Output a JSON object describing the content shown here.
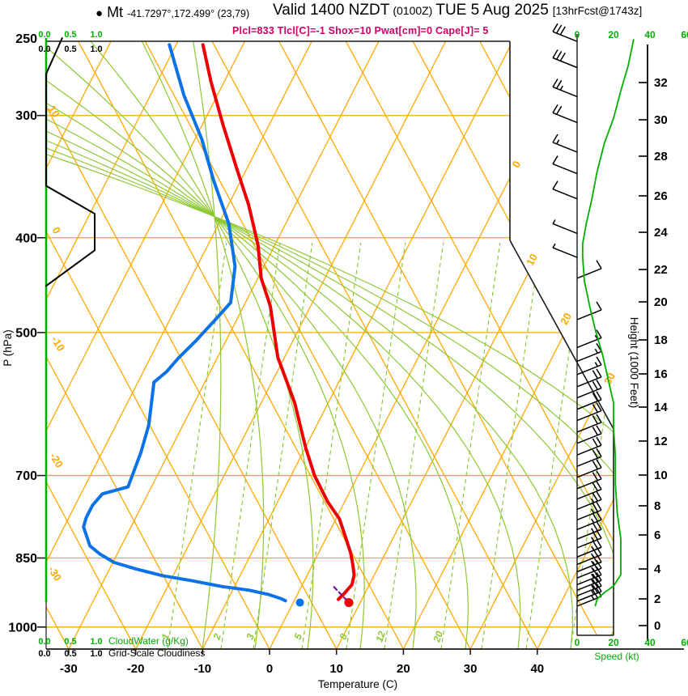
{
  "header": {
    "station_bullet": "●",
    "station_name": "Mt",
    "station_coords": "-41.7297°,172.499° (23,79)",
    "title_valid": "Valid 1400 NZDT",
    "title_utc": "(0100Z)",
    "title_date": "TUE 5 Aug 2025",
    "title_fcst": "[13hrFcst@1743z]",
    "params_line": "Plcl=833 Tlcl[C]=-1 Shox=10 Pwat[cm]=0 Cape[J]= 5"
  },
  "axes": {
    "pressure_title": "P (hPa)",
    "pressure_ticks": [
      250,
      300,
      400,
      500,
      700,
      850,
      1000
    ],
    "temperature_title": "Temperature (C)",
    "temperature_ticks": [
      -30,
      -20,
      -10,
      0,
      10,
      20,
      30,
      40
    ],
    "height_title": "Height (1000 Feet)",
    "height_ticks": [
      0,
      2,
      4,
      6,
      8,
      10,
      12,
      14,
      16,
      18,
      20,
      22,
      24,
      26,
      28,
      30,
      32
    ],
    "speed_title": "Speed (kt)",
    "speed_ticks": [
      0,
      20,
      40,
      60
    ],
    "cloud_scale_ticks": [
      "0.0",
      "0.5",
      "1.0"
    ],
    "cloudwater_label": "CloudWater (g/Kg)",
    "cloudiness_label": "Grid-Scale Cloudiness"
  },
  "grid_labels": {
    "isotherms": [
      0,
      10,
      20,
      30
    ],
    "dry_adiabats": [
      10,
      0,
      -10,
      -20,
      -30
    ],
    "mixing_ratio": [
      1,
      2,
      3,
      5,
      8,
      12,
      20
    ]
  },
  "colors": {
    "grid_orange": "#FFA800",
    "moist_green": "#8CC832",
    "bright_green": "#00AF00",
    "temperature_red": "#EE0000",
    "dewpoint_blue": "#0C72E8",
    "params_magenta": "#CC0066",
    "parcel_purple": "#7A0D9E",
    "axis_black": "#1a1a1a"
  },
  "chart_data": {
    "type": "line",
    "diagram": "skew-T log-p atmospheric sounding",
    "title": "Valid 1400 NZDT (0100Z) TUE 5 Aug 2025 [13hrFcst@1743z]",
    "xlabel": "Temperature (C)",
    "ylabel": "P (hPa)",
    "x_range_C": [
      -35,
      45
    ],
    "pressure_range_hPa": [
      250,
      1000
    ],
    "height_axis_kft_range": [
      0,
      32
    ],
    "speed_axis_kt_range": [
      0,
      60
    ],
    "series": [
      {
        "name": "temperature_C_vs_hPa",
        "color": "#EE0000",
        "points": [
          [
            254,
            -56
          ],
          [
            277,
            -52
          ],
          [
            306,
            -47
          ],
          [
            340,
            -41.5
          ],
          [
            370,
            -37
          ],
          [
            407,
            -32.5
          ],
          [
            440,
            -29.5
          ],
          [
            470,
            -26
          ],
          [
            530,
            -21
          ],
          [
            590,
            -15
          ],
          [
            655,
            -10
          ],
          [
            700,
            -6.5
          ],
          [
            745,
            -2.5
          ],
          [
            775,
            0.5
          ],
          [
            815,
            3.2
          ],
          [
            840,
            4.8
          ],
          [
            865,
            6.1
          ],
          [
            885,
            7.0
          ],
          [
            905,
            7.4
          ],
          [
            925,
            6.9
          ],
          [
            937,
            6.5
          ]
        ]
      },
      {
        "name": "dewpoint_C_vs_hPa",
        "color": "#0C72E8",
        "points": [
          [
            254,
            -61
          ],
          [
            286,
            -55
          ],
          [
            317,
            -49
          ],
          [
            350,
            -44
          ],
          [
            387,
            -38.5
          ],
          [
            428,
            -34.3
          ],
          [
            466,
            -32.2
          ],
          [
            487,
            -33.3
          ],
          [
            510,
            -34.5
          ],
          [
            531,
            -35.8
          ],
          [
            548,
            -36.5
          ],
          [
            562,
            -37.6
          ],
          [
            597,
            -36.1
          ],
          [
            622,
            -35.1
          ],
          [
            663,
            -34.2
          ],
          [
            719,
            -33.5
          ],
          [
            731,
            -36.8
          ],
          [
            751,
            -37.4
          ],
          [
            773,
            -37.4
          ],
          [
            790,
            -37.1
          ],
          [
            826,
            -34.7
          ],
          [
            842,
            -32.6
          ],
          [
            859,
            -29.8
          ],
          [
            872,
            -26.1
          ],
          [
            886,
            -21.6
          ],
          [
            897,
            -16.7
          ],
          [
            909,
            -11.9
          ],
          [
            917,
            -7.5
          ],
          [
            926,
            -4.4
          ],
          [
            935,
            -2.2
          ],
          [
            940,
            -1.3
          ]
        ]
      },
      {
        "name": "parcel_path_C_vs_hPa",
        "color": "#7A0D9E",
        "style": "dashed",
        "points": [
          [
            910,
            4.9
          ],
          [
            942,
            8.1
          ]
        ]
      },
      {
        "name": "wind_speed_kt_vs_hPa",
        "color": "#00AF00",
        "points": [
          [
            251,
            31
          ],
          [
            267,
            28
          ],
          [
            283,
            24
          ],
          [
            302,
            20
          ],
          [
            320,
            15
          ],
          [
            342,
            11
          ],
          [
            366,
            8
          ],
          [
            387,
            5
          ],
          [
            406,
            3
          ],
          [
            418,
            3
          ],
          [
            443,
            4
          ],
          [
            471,
            7
          ],
          [
            497,
            10
          ],
          [
            527,
            14
          ],
          [
            558,
            17
          ],
          [
            590,
            20
          ],
          [
            625,
            20
          ],
          [
            669,
            21
          ],
          [
            714,
            21
          ],
          [
            763,
            22
          ],
          [
            813,
            24
          ],
          [
            856,
            24
          ],
          [
            884,
            24
          ],
          [
            908,
            20
          ],
          [
            922,
            15
          ],
          [
            936,
            11
          ],
          [
            951,
            10
          ]
        ]
      },
      {
        "name": "grid_scale_cloudiness_frac_vs_hPa",
        "color": "#000000",
        "points": [
          [
            250,
            0.33
          ],
          [
            272,
            0
          ],
          [
            354,
            0
          ],
          [
            378,
            1
          ],
          [
            412,
            1
          ],
          [
            448,
            0
          ]
        ]
      },
      {
        "name": "cloud_water_g_kg_vs_hPa",
        "color": "#00AF00",
        "points": [
          [
            250,
            0
          ],
          [
            944,
            0
          ]
        ]
      }
    ],
    "surface": {
      "pressure_hPa": 944,
      "temperature_dot_C": 8.3,
      "dewpoint_dot_C": 1.0
    },
    "wind_barbs": [
      {
        "p": 252,
        "kt": 30,
        "dir": "NW"
      },
      {
        "p": 268,
        "kt": 30,
        "dir": "NW"
      },
      {
        "p": 287,
        "kt": 25,
        "dir": "NW"
      },
      {
        "p": 305,
        "kt": 20,
        "dir": "NW"
      },
      {
        "p": 327,
        "kt": 15,
        "dir": "NW"
      },
      {
        "p": 344,
        "kt": 10,
        "dir": "NW"
      },
      {
        "p": 365,
        "kt": 10,
        "dir": "NW"
      },
      {
        "p": 396,
        "kt": 5,
        "dir": "NW"
      },
      {
        "p": 419,
        "kt": 5,
        "dir": "NW"
      },
      {
        "p": 440,
        "kt": 10,
        "dir": "NE"
      },
      {
        "p": 485,
        "kt": 10,
        "dir": "NE"
      },
      {
        "p": 518,
        "kt": 15,
        "dir": "NE"
      },
      {
        "p": 535,
        "kt": 15,
        "dir": "NE"
      },
      {
        "p": 552,
        "kt": 15,
        "dir": "NE"
      },
      {
        "p": 568,
        "kt": 20,
        "dir": "NE"
      },
      {
        "p": 583,
        "kt": 20,
        "dir": "NE"
      },
      {
        "p": 599,
        "kt": 20,
        "dir": "NE"
      },
      {
        "p": 615,
        "kt": 20,
        "dir": "NE"
      },
      {
        "p": 632,
        "kt": 20,
        "dir": "NE"
      },
      {
        "p": 649,
        "kt": 20,
        "dir": "NE"
      },
      {
        "p": 667,
        "kt": 20,
        "dir": "NE"
      },
      {
        "p": 685,
        "kt": 20,
        "dir": "NE"
      },
      {
        "p": 703,
        "kt": 20,
        "dir": "NE"
      },
      {
        "p": 722,
        "kt": 20,
        "dir": "NE"
      },
      {
        "p": 740,
        "kt": 20,
        "dir": "NE"
      },
      {
        "p": 758,
        "kt": 25,
        "dir": "NE"
      },
      {
        "p": 777,
        "kt": 25,
        "dir": "NE"
      },
      {
        "p": 795,
        "kt": 25,
        "dir": "NE"
      },
      {
        "p": 813,
        "kt": 25,
        "dir": "NE"
      },
      {
        "p": 830,
        "kt": 25,
        "dir": "NE"
      },
      {
        "p": 848,
        "kt": 25,
        "dir": "NE"
      },
      {
        "p": 863,
        "kt": 25,
        "dir": "NE"
      },
      {
        "p": 878,
        "kt": 25,
        "dir": "NE"
      },
      {
        "p": 891,
        "kt": 25,
        "dir": "NE"
      },
      {
        "p": 905,
        "kt": 25,
        "dir": "NE"
      },
      {
        "p": 917,
        "kt": 25,
        "dir": "NE"
      },
      {
        "p": 929,
        "kt": 25,
        "dir": "NE"
      },
      {
        "p": 941,
        "kt": 25,
        "dir": "NE"
      },
      {
        "p": 952,
        "kt": 25,
        "dir": "NE"
      }
    ],
    "parameters": {
      "Plcl": 833,
      "Tlcl_C": -1,
      "Shox": 10,
      "Pwat_cm": 0,
      "Cape_J": 5
    }
  }
}
